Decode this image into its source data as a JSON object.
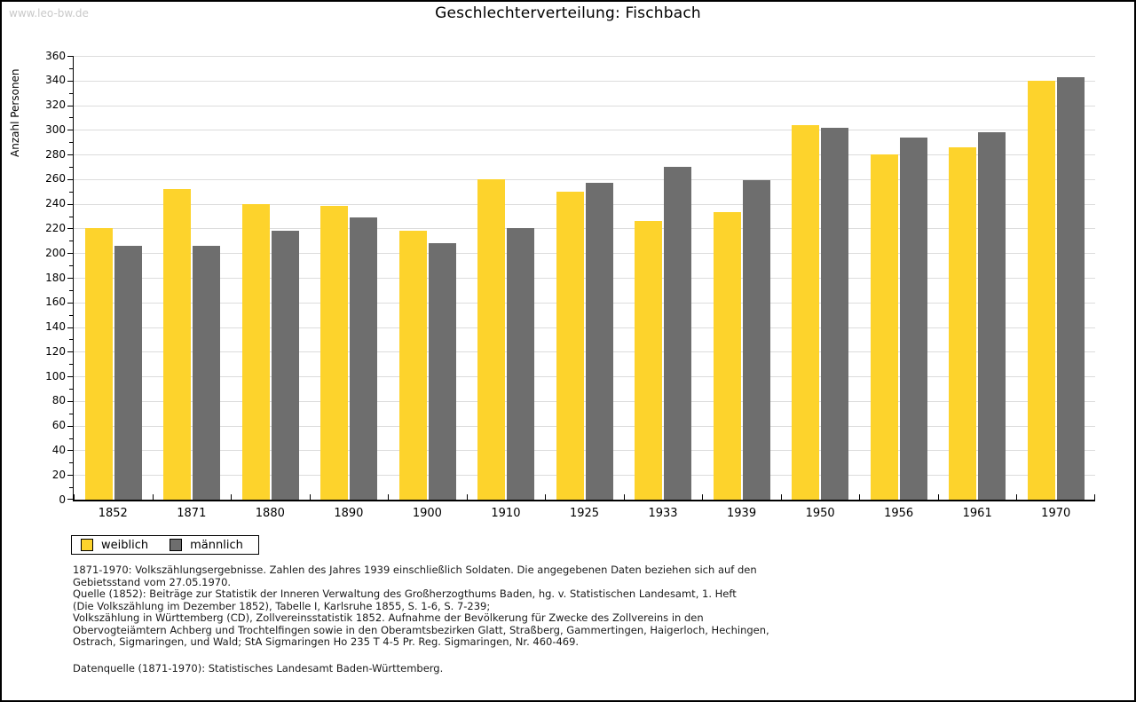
{
  "page": {
    "watermark": "www.leo-bw.de"
  },
  "chart_data": {
    "type": "bar",
    "title": "Geschlechterverteilung: Fischbach",
    "xlabel": "",
    "ylabel": "Anzahl Personen",
    "ylim": [
      0,
      360
    ],
    "ytick_step": 20,
    "ytick_minor_step": 10,
    "grid": true,
    "legend_position": "bottom-left",
    "categories": [
      "1852",
      "1871",
      "1880",
      "1890",
      "1900",
      "1910",
      "1925",
      "1933",
      "1939",
      "1950",
      "1956",
      "1961",
      "1970"
    ],
    "series": [
      {
        "name": "weiblich",
        "color": "#fdd32c",
        "values": [
          220,
          252,
          240,
          238,
          218,
          260,
          250,
          226,
          233,
          304,
          280,
          286,
          340
        ]
      },
      {
        "name": "männlich",
        "color": "#6e6e6e",
        "values": [
          206,
          206,
          218,
          229,
          208,
          220,
          257,
          270,
          259,
          302,
          294,
          298,
          343
        ]
      }
    ]
  },
  "footer": {
    "lines": [
      "1871-1970: Volkszählungsergebnisse. Zahlen des Jahres 1939 einschließlich Soldaten. Die angegebenen Daten beziehen sich auf den",
      "Gebietsstand vom 27.05.1970.",
      "Quelle (1852): Beiträge zur Statistik der Inneren Verwaltung des Großherzogthums Baden, hg. v. Statistischen Landesamt, 1. Heft",
      "(Die Volkszählung im Dezember 1852), Tabelle I, Karlsruhe 1855, S. 1-6, S. 7-239;",
      "Volkszählung in Württemberg (CD), Zollvereinsstatistik 1852. Aufnahme der Bevölkerung für Zwecke des Zollvereins in den",
      "Obervogteiämtern Achberg und Trochtelfingen sowie in den Oberamtsbezirken Glatt, Straßberg, Gammertingen, Haigerloch, Hechingen,",
      "Ostrach, Sigmaringen, und Wald; StA Sigmaringen Ho 235 T 4-5 Pr. Reg. Sigmaringen, Nr. 460-469."
    ],
    "datasource": "Datenquelle (1871-1970): Statistisches Landesamt Baden-Württemberg."
  }
}
